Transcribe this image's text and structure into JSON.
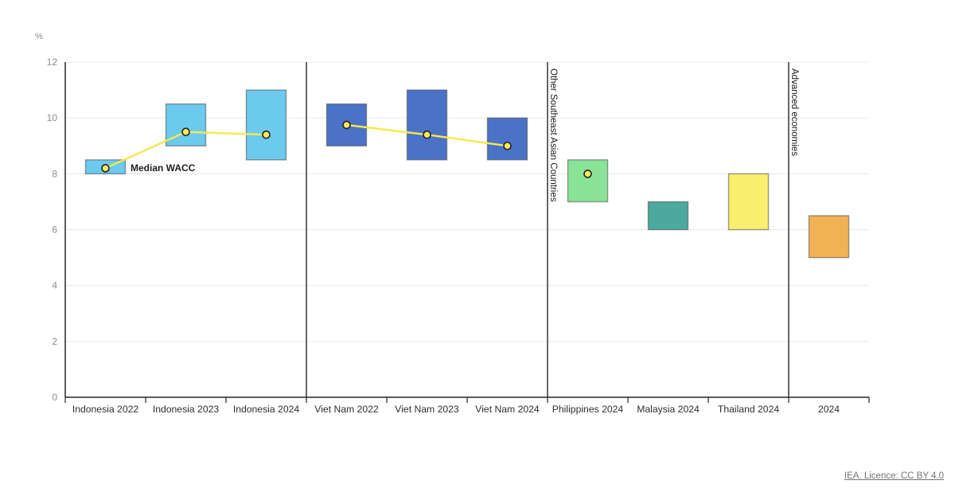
{
  "footer": {
    "license_text": "IEA. Licence: CC BY 4.0"
  },
  "chart_data": {
    "type": "bar",
    "subtype": "floating-range-columns-with-median-points",
    "title": "",
    "unit_label": "%",
    "ylim": [
      0,
      12
    ],
    "yticks": [
      0,
      2,
      4,
      6,
      8,
      10,
      12
    ],
    "grid": true,
    "legend_position": "none",
    "median_label": "Median WACC",
    "categories": [
      "Indonesia 2022",
      "Indonesia 2023",
      "Indonesia 2024",
      "Viet Nam 2022",
      "Viet Nam 2023",
      "Viet Nam 2024",
      "Philippines 2024",
      "Malaysia 2024",
      "Thailand 2024",
      "2024"
    ],
    "bars": [
      {
        "label": "Indonesia 2022",
        "low": 8.0,
        "high": 8.5,
        "median": 8.2,
        "color": "#6bcaee",
        "line_group": "indonesia"
      },
      {
        "label": "Indonesia 2023",
        "low": 9.0,
        "high": 10.5,
        "median": 9.5,
        "color": "#6bcaee",
        "line_group": "indonesia"
      },
      {
        "label": "Indonesia 2024",
        "low": 8.5,
        "high": 11.0,
        "median": 9.4,
        "color": "#6bcaee",
        "line_group": "indonesia"
      },
      {
        "label": "Viet Nam 2022",
        "low": 9.0,
        "high": 10.5,
        "median": 9.75,
        "color": "#4a73c8",
        "line_group": "viet-nam"
      },
      {
        "label": "Viet Nam 2023",
        "low": 8.5,
        "high": 11.0,
        "median": 9.4,
        "color": "#4a73c8",
        "line_group": "viet-nam"
      },
      {
        "label": "Viet Nam 2024",
        "low": 8.5,
        "high": 10.0,
        "median": 9.0,
        "color": "#4a73c8",
        "line_group": "viet-nam"
      },
      {
        "label": "Philippines 2024",
        "low": 7.0,
        "high": 8.5,
        "median": 8.0,
        "color": "#8ae497",
        "line_group": "philippines"
      },
      {
        "label": "Malaysia 2024",
        "low": 6.0,
        "high": 7.0,
        "median": null,
        "color": "#4ba99d",
        "line_group": null
      },
      {
        "label": "Thailand 2024",
        "low": 6.0,
        "high": 8.0,
        "median": null,
        "color": "#f9ee6e",
        "line_group": null
      },
      {
        "label": "2024",
        "low": 5.0,
        "high": 6.5,
        "median": null,
        "color": "#f1b255",
        "line_group": null
      }
    ],
    "separators": [
      {
        "after_category_index": 2,
        "label": ""
      },
      {
        "after_category_index": 5,
        "label": "Other Southeast Asian Countries"
      },
      {
        "after_category_index": 8,
        "label": "Advanced economies"
      }
    ],
    "colors": {
      "median_point": "#ffe95e",
      "median_point_border": "#222222",
      "median_line": "#f7e84b",
      "bar_border": "#4a4a4a",
      "axis": "#262626",
      "grid": "#e8e8e8",
      "ytick_label": "#8c8c8c",
      "xtick_label": "#2e2e2e",
      "group_label": "#1a1a1a",
      "annotation": "#1f1f1f",
      "footer_link": "#757575"
    }
  }
}
